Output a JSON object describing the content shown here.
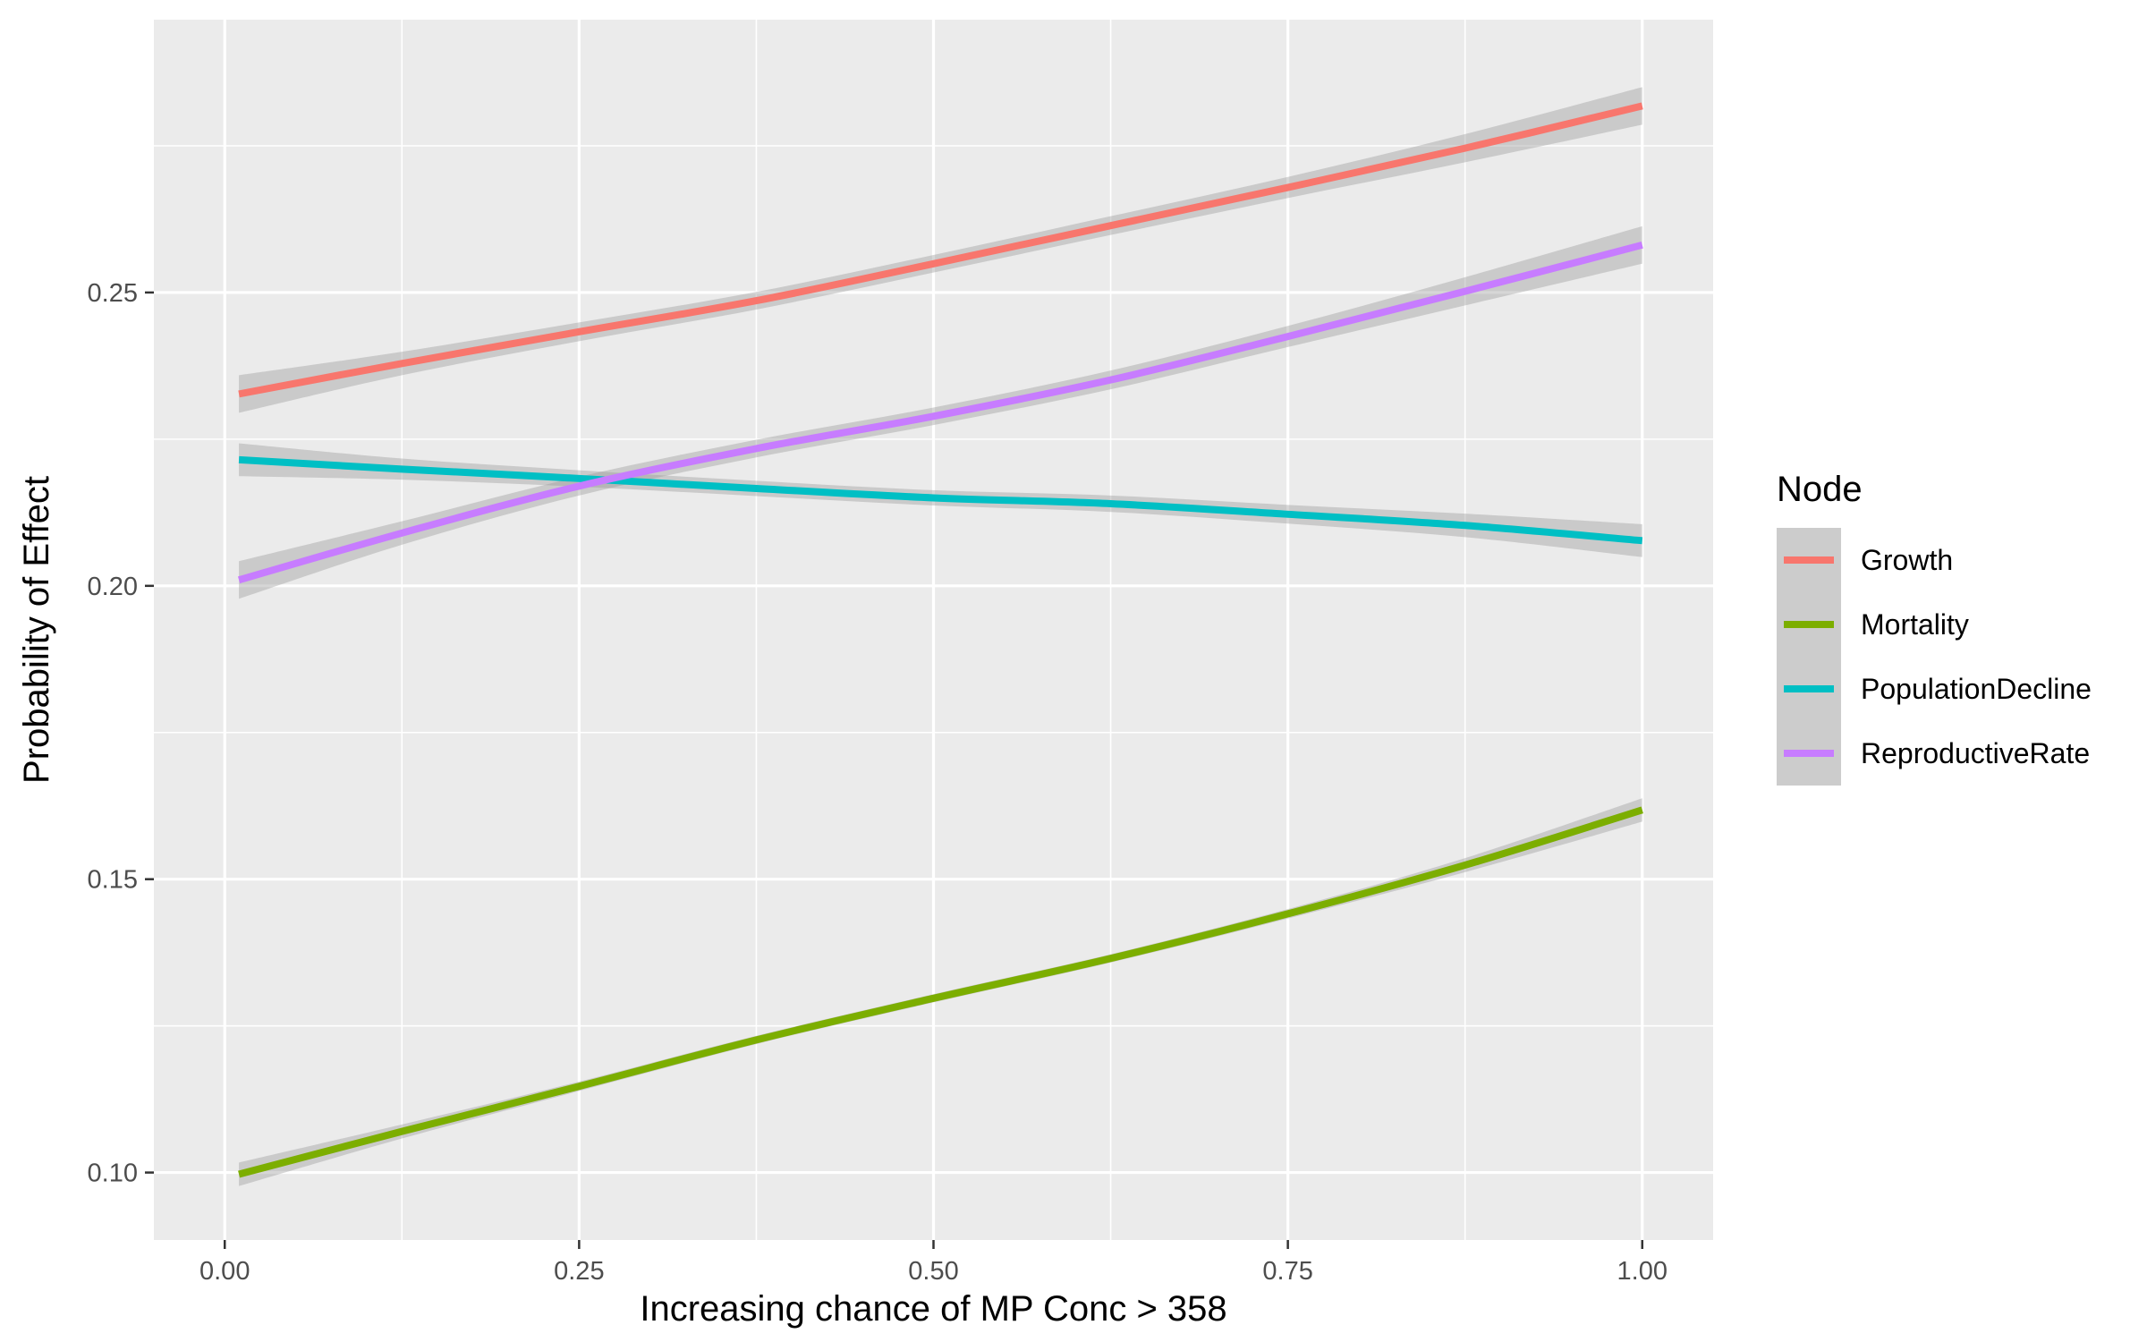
{
  "chart_data": {
    "type": "line",
    "xlabel": "Increasing chance of MP Conc > 358",
    "ylabel": "Probability of Effect",
    "xlim": [
      -0.05,
      1.05
    ],
    "ylim": [
      0.0885,
      0.2965
    ],
    "x_ticks": [
      0.0,
      0.25,
      0.5,
      0.75,
      1.0
    ],
    "x_tick_labels": [
      "0.00",
      "0.25",
      "0.50",
      "0.75",
      "1.00"
    ],
    "y_ticks": [
      0.1,
      0.15,
      0.2,
      0.25
    ],
    "y_tick_labels": [
      "0.10",
      "0.15",
      "0.20",
      "0.25"
    ],
    "grid": true,
    "legend_title": "Node",
    "legend_position": "right",
    "x": [
      0.01,
      0.125,
      0.25,
      0.375,
      0.5,
      0.625,
      0.75,
      0.875,
      1.0
    ],
    "series": [
      {
        "name": "Growth",
        "color": "#F8766D",
        "values": [
          0.2327,
          0.2379,
          0.2433,
          0.2486,
          0.2549,
          0.2614,
          0.2679,
          0.2746,
          0.2818
        ],
        "ci_halfwidth": [
          0.0032,
          0.002,
          0.0016,
          0.0015,
          0.0015,
          0.0016,
          0.0018,
          0.0024,
          0.0032
        ]
      },
      {
        "name": "Mortality",
        "color": "#7CAE00",
        "values": [
          0.0997,
          0.107,
          0.1147,
          0.1226,
          0.1297,
          0.1365,
          0.1441,
          0.1524,
          0.1618
        ],
        "ci_halfwidth": [
          0.002,
          0.0012,
          0.0008,
          0.0007,
          0.0007,
          0.0007,
          0.0008,
          0.0012,
          0.002
        ]
      },
      {
        "name": "PopulationDecline",
        "color": "#00BFC4",
        "values": [
          0.2215,
          0.2199,
          0.2183,
          0.2166,
          0.215,
          0.214,
          0.2122,
          0.2103,
          0.2077
        ],
        "ci_halfwidth": [
          0.0028,
          0.0018,
          0.0014,
          0.0013,
          0.0013,
          0.0014,
          0.0016,
          0.002,
          0.0028
        ]
      },
      {
        "name": "ReproductiveRate",
        "color": "#C77CFF",
        "values": [
          0.201,
          0.209,
          0.217,
          0.2234,
          0.2289,
          0.2351,
          0.2425,
          0.2502,
          0.2581
        ],
        "ci_halfwidth": [
          0.0032,
          0.002,
          0.0016,
          0.0015,
          0.0015,
          0.0016,
          0.0018,
          0.0024,
          0.0032
        ]
      }
    ],
    "colors": {
      "panel_background": "#EBEBEB",
      "grid": "#FFFFFF",
      "ribbon": "#999999"
    }
  }
}
